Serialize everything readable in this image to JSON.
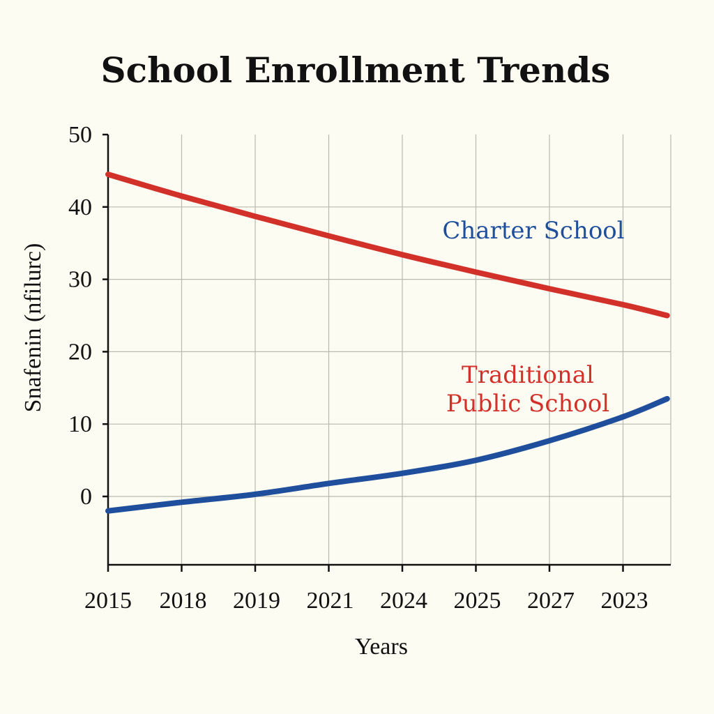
{
  "chart_data": {
    "type": "line",
    "title": "School Enrollment Trends",
    "xlabel": "Years",
    "ylabel": "Snafenin (nfilurc)",
    "categories": [
      "2015",
      "2018",
      "2019",
      "2021",
      "2024",
      "2025",
      "2027",
      "2023"
    ],
    "yticks": [
      "50",
      "40",
      "30",
      "20",
      "10",
      "0"
    ],
    "ylim": [
      -9.5,
      50
    ],
    "grid": true,
    "series": [
      {
        "name": "Charter School",
        "color": "#1f4f9c",
        "x": [
          0,
          1,
          2,
          3,
          4,
          5,
          6,
          7,
          7.6
        ],
        "values": [
          -2,
          -0.8,
          0.3,
          1.8,
          3.2,
          5.0,
          7.7,
          11.0,
          13.5
        ]
      },
      {
        "name": "Traditional Public School",
        "color": "#d2312a",
        "x": [
          0,
          1,
          2,
          3,
          4,
          5,
          6,
          7,
          7.6
        ],
        "values": [
          44.5,
          41.5,
          38.7,
          36.0,
          33.4,
          31.0,
          28.7,
          26.5,
          25.0
        ]
      }
    ],
    "annotations": [
      {
        "text": "Charter School",
        "color": "#1f4f9c"
      },
      {
        "text": "Traditional",
        "color": "#d2312a"
      },
      {
        "text": "Public School",
        "color": "#d2312a"
      }
    ]
  }
}
